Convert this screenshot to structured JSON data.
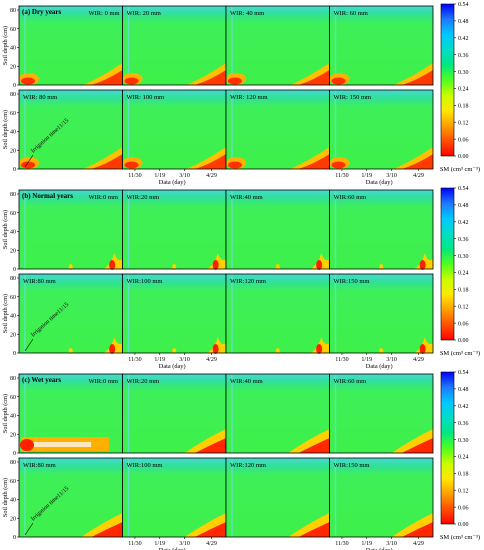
{
  "chart_data": [
    {
      "type": "heatmap",
      "group": "dry",
      "title": "(a) Dry years",
      "ylabel": "Soil depth (cm)",
      "xlabel": "Data (day)",
      "y_ticks": [
        0,
        20,
        40,
        60,
        80
      ],
      "ylim": [
        0,
        80
      ],
      "x_ticks": [
        "11/30",
        "1/19",
        "3/10",
        "4/29"
      ],
      "panels_top": [
        "WIR: 0 mm",
        "WIR: 20 mm",
        "WIR: 40 mm",
        "WIR: 60 mm"
      ],
      "panels_bottom": [
        "WIR: 80 mm",
        "WIR: 100 mm",
        "WIR: 120 mm",
        "WIR: 150 mm"
      ],
      "annotation": "Irrigation time11/15",
      "colorbar": {
        "label": "SM (cm³ cm⁻³)",
        "ticks": [
          "0.54",
          "0.48",
          "0.42",
          "0.36",
          "0.30",
          "0.24",
          "0.18",
          "0.12",
          "0.06",
          "0.00"
        ]
      }
    },
    {
      "type": "heatmap",
      "group": "normal",
      "title": "(b) Normal years",
      "ylabel": "Soil depth (cm)",
      "xlabel": "Data (day)",
      "y_ticks": [
        0,
        20,
        40,
        60,
        80
      ],
      "ylim": [
        0,
        80
      ],
      "x_ticks": [
        "11/30",
        "1/19",
        "3/10",
        "4/29"
      ],
      "panels_top": [
        "WIR:0 mm",
        "WIR:20 mm",
        "WIR:40 mm",
        "WIR:60 mm"
      ],
      "panels_bottom": [
        "WIR:80 mm",
        "WIR:100 mm",
        "WIR:120 mm",
        "WIR:150 mm"
      ],
      "annotation": "Irrigation time11/15",
      "colorbar": {
        "label": "SM (cm³ cm⁻³)",
        "ticks": [
          "0.54",
          "0.48",
          "0.42",
          "0.36",
          "0.30",
          "0.24",
          "0.18",
          "0.12",
          "0.06",
          "0.00"
        ]
      }
    },
    {
      "type": "heatmap",
      "group": "wet",
      "title": "(c) Wet years",
      "ylabel": "Soil depth (cm)",
      "xlabel": "Data (day)",
      "y_ticks": [
        0,
        20,
        40,
        60,
        80
      ],
      "ylim": [
        0,
        80
      ],
      "x_ticks": [
        "11/30",
        "1/19",
        "3/10",
        "4/29"
      ],
      "panels_top": [
        "WIR:0 mm",
        "WIR:20 mm",
        "WIR:40 mm",
        "WIR:60 mm"
      ],
      "panels_bottom": [
        "WIR:80 mm",
        "WIR:100 mm",
        "WIR:120 mm",
        "WIR:150 mm"
      ],
      "annotation": "Irrigation time11/15",
      "colorbar": {
        "label": "SM (cm³ cm⁻³)",
        "ticks": [
          "0.54",
          "0.48",
          "0.42",
          "0.36",
          "0.30",
          "0.24",
          "0.18",
          "0.12",
          "0.06",
          "0.00"
        ]
      }
    }
  ],
  "colors": {
    "scale": [
      "#ff0000",
      "#ff5000",
      "#ffa000",
      "#ffe800",
      "#c8ff00",
      "#50ff20",
      "#00e880",
      "#00dcc8",
      "#00c8ff",
      "#1e78ff",
      "#0000ff"
    ],
    "soil_green": "#38f038",
    "surface_cyan": "#40d8c0"
  }
}
